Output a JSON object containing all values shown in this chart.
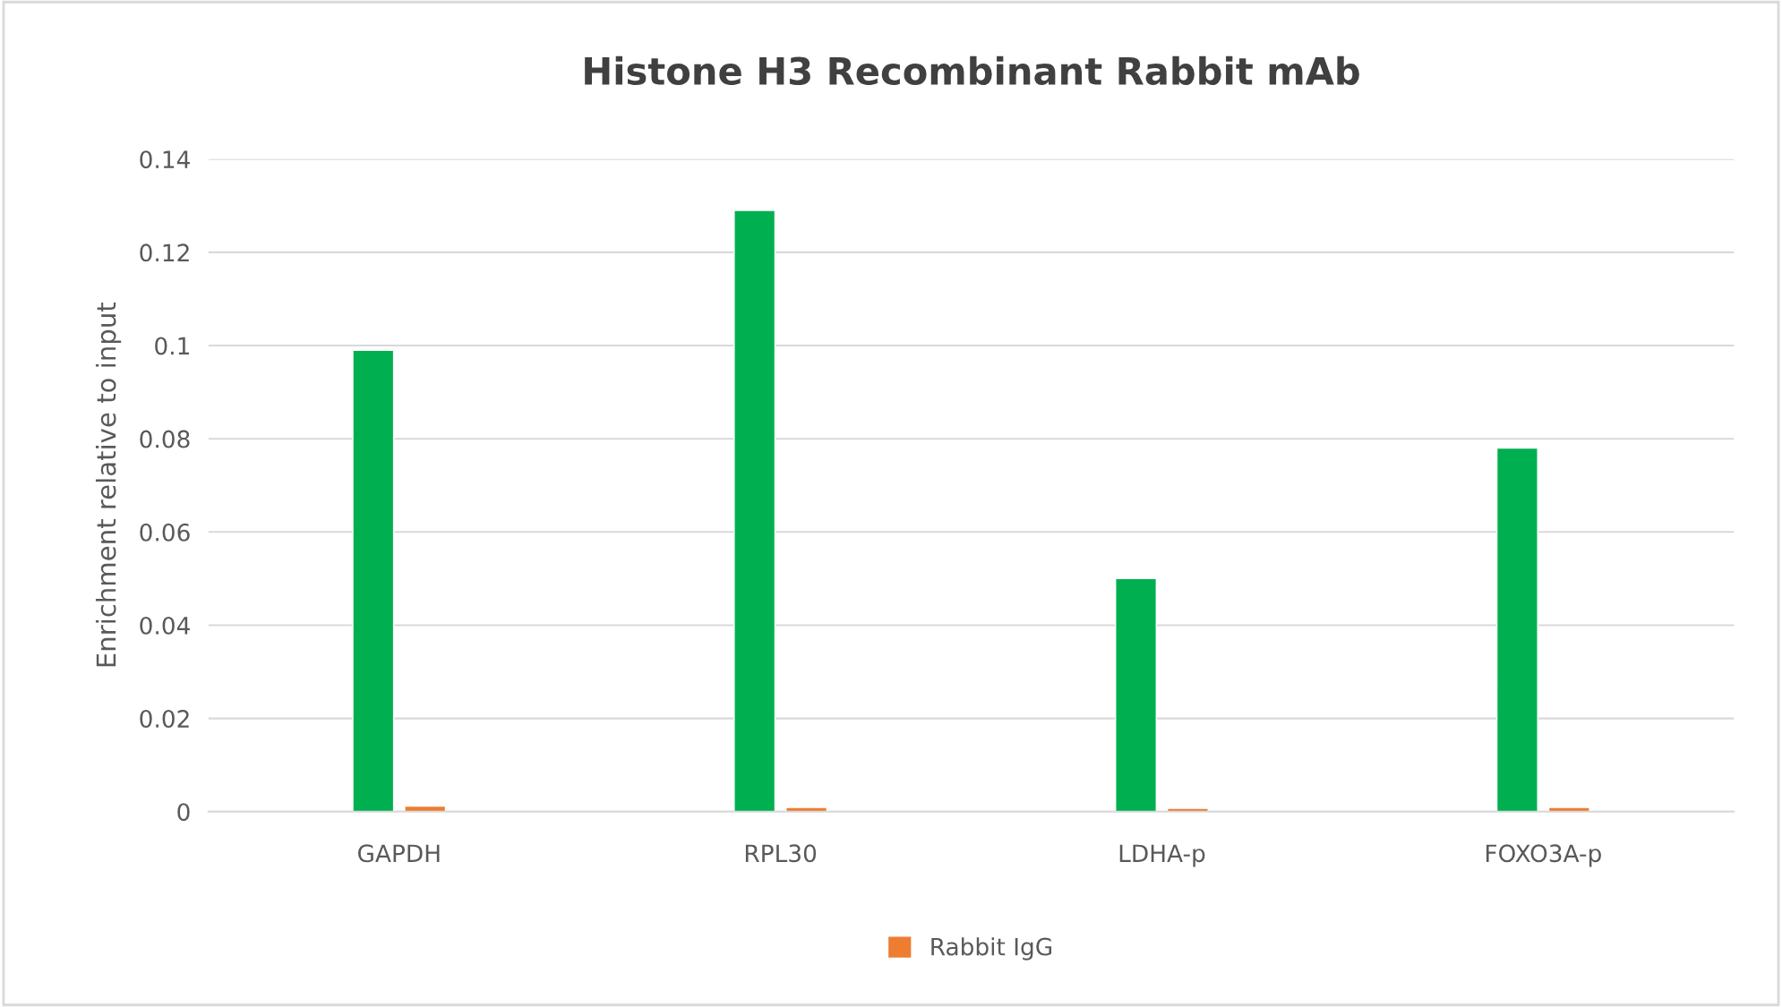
{
  "chart_data": {
    "type": "bar",
    "title": "Histone H3 Recombinant Rabbit mAb",
    "ylabel": "Enrichment relative to input",
    "categories": [
      "GAPDH",
      "RPL30",
      "LDHA-p",
      "FOXO3A-p"
    ],
    "series": [
      {
        "color": "#00b050",
        "values": [
          0.099,
          0.129,
          0.05,
          0.078
        ]
      },
      {
        "name": "Rabbit IgG",
        "color": "#ed7d31",
        "values": [
          0.0012,
          0.0009,
          0.0007,
          0.0009
        ]
      }
    ],
    "ylim": [
      0,
      0.14
    ],
    "yticks": [
      0,
      0.02,
      0.04,
      0.06,
      0.08,
      0.1,
      0.12,
      0.14
    ],
    "grid": "y",
    "legend": "bottom"
  }
}
